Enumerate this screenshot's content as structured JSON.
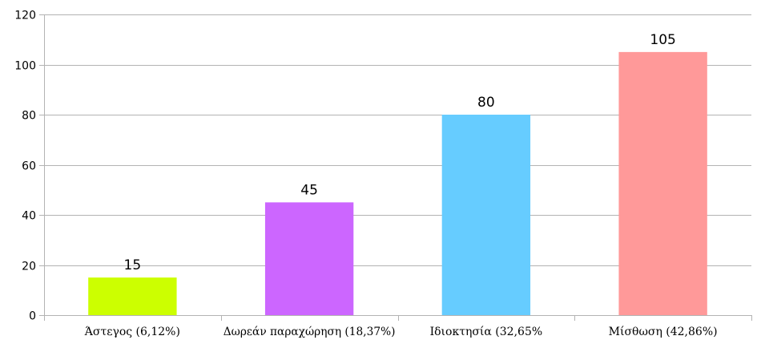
{
  "chart_data": {
    "type": "bar",
    "title": "",
    "xlabel": "",
    "ylabel": "",
    "categories": [
      "Άστεγος (6,12%)",
      "Δωρεάν παραχώρηση (18,37%)",
      "Ιδιοκτησία (32,65%",
      "Μίσθωση (42,86%)"
    ],
    "values": [
      15,
      45,
      80,
      105
    ],
    "data_labels": [
      "15",
      "45",
      "80",
      "105"
    ],
    "bar_colors": [
      "#ccff00",
      "#cc66ff",
      "#66ccff",
      "#ff9999"
    ],
    "ylim": [
      0,
      120
    ],
    "yticks": [
      0,
      20,
      40,
      60,
      80,
      100,
      120
    ],
    "ytick_labels": [
      "0",
      "20",
      "40",
      "60",
      "80",
      "100",
      "120"
    ],
    "grid": true,
    "legend": "none"
  }
}
